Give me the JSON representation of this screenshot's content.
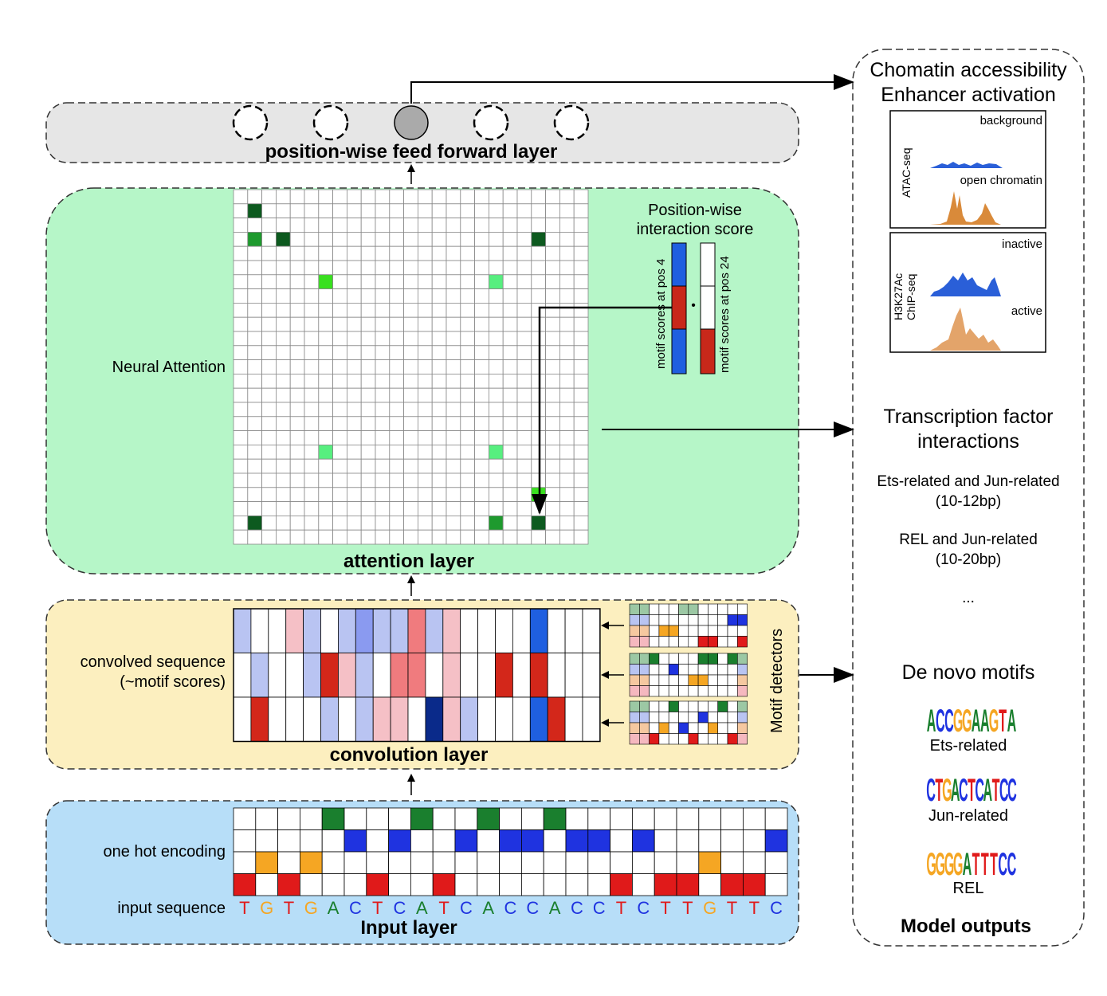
{
  "colors": {
    "A": "#1a7f2e",
    "C": "#1f33e0",
    "G": "#f5a623",
    "T": "#e01a1a",
    "ff_bg": "#e6e6e6",
    "attn_bg": "#b6f6c8",
    "conv_bg": "#fcefbf",
    "input_bg": "#b7def8",
    "dark_green": "#0d5a1f",
    "mid_green": "#1e9a2e",
    "bright_green": "#39e01f",
    "light_green": "#57ef7f",
    "blue_bar": "#1f5fe0",
    "red_bar": "#c8281a"
  },
  "input_layer": {
    "title": "Input layer",
    "one_hot_label": "one hot encoding",
    "input_sequence_label": "input sequence",
    "sequence": [
      "T",
      "G",
      "T",
      "G",
      "A",
      "C",
      "T",
      "C",
      "A",
      "T",
      "C",
      "A",
      "C",
      "C",
      "A",
      "C",
      "C",
      "T",
      "C",
      "T",
      "T",
      "G",
      "T",
      "T",
      "C"
    ]
  },
  "convolution_layer": {
    "title": "convolution layer",
    "convolved_label_1": "convolved sequence",
    "convolved_label_2": "(~motif scores)",
    "motif_detectors_label": "Motif detectors",
    "score_rows": [
      [
        "lightblue",
        "white",
        "white",
        "lightpink",
        "lightblue",
        "white",
        "lightblue",
        "medblue",
        "lightblue",
        "lightblue",
        "pink",
        "lightblue",
        "lightpink",
        "white",
        "white",
        "white",
        "white",
        "blue",
        "white",
        "white",
        "white"
      ],
      [
        "white",
        "lightblue",
        "white",
        "white",
        "lightblue",
        "red",
        "lightpink",
        "lightblue",
        "white",
        "pink",
        "pink",
        "white",
        "lightpink",
        "white",
        "white",
        "red",
        "white",
        "red",
        "white",
        "white",
        "white"
      ],
      [
        "white",
        "red",
        "white",
        "white",
        "white",
        "lightblue",
        "white",
        "lightblue",
        "lightpink",
        "lightpink",
        "white",
        "darkblue",
        "lightpink",
        "lightblue",
        "white",
        "white",
        "white",
        "blue",
        "red",
        "white",
        "white"
      ]
    ]
  },
  "attention_layer": {
    "title": "attention layer",
    "side_label": "Neural Attention",
    "score_title_1": "Position-wise",
    "score_title_2": "interaction score",
    "pos4_label": "motif scores at pos 4",
    "pos24_label": "motif scores at pos 24",
    "dot": "•"
  },
  "feed_forward_layer": {
    "title": "position-wise feed forward layer"
  },
  "model_outputs": {
    "title": "Model outputs",
    "chromatin_title_1": "Chomatin accessibility",
    "chromatin_title_2": "Enhancer activation",
    "atac": {
      "track_label": "ATAC-seq",
      "top_label": "background",
      "bottom_label": "open chromatin"
    },
    "chip": {
      "track_label_1": "H3K27Ac",
      "track_label_2": "ChIP-seq",
      "top_label": "inactive",
      "bottom_label": "active"
    },
    "tf_title_1": "Transcription factor",
    "tf_title_2": "interactions",
    "interaction_1_name": "Ets-related and Jun-related",
    "interaction_1_range": "(10-12bp)",
    "interaction_2_name": "REL and Jun-related",
    "interaction_2_range": "(10-20bp)",
    "ellipsis": "...",
    "motifs_title": "De novo motifs",
    "motifs": [
      {
        "name": "Ets-related",
        "logo": "ACCGGAAGTA"
      },
      {
        "name": "Jun-related",
        "logo": "CTGACTCATCC"
      },
      {
        "name": "REL",
        "logo": "GGGGATTTCC"
      }
    ]
  }
}
